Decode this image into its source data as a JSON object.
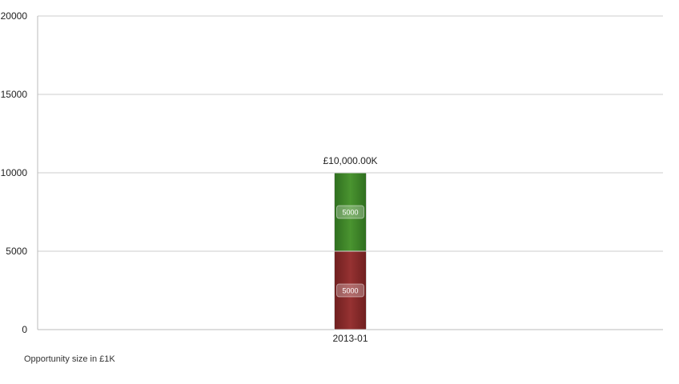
{
  "chart_data": {
    "type": "bar",
    "stacked": true,
    "categories": [
      "2013-01"
    ],
    "series": [
      {
        "values": [
          5000
        ],
        "color": "#8b2a2a"
      },
      {
        "values": [
          5000
        ],
        "color": "#3f8a2a"
      }
    ],
    "stack_labels": [
      "£10,000.00K"
    ],
    "segment_labels": [
      [
        "5000"
      ],
      [
        "5000"
      ]
    ],
    "yticks": [
      "0",
      "5000",
      "10000",
      "15000",
      "20000"
    ],
    "ylim": [
      0,
      20000
    ],
    "grid": true,
    "legend": "none"
  },
  "footnote": "Opportunity size in £1K"
}
